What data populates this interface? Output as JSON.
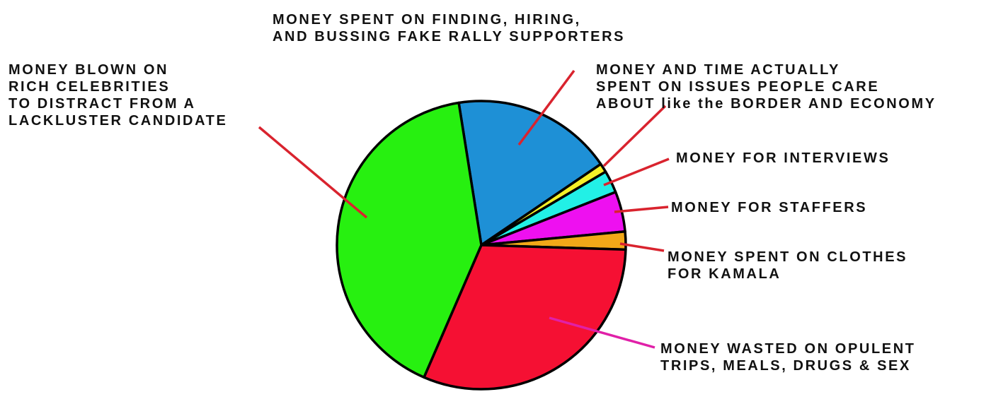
{
  "chart_data": {
    "type": "pie",
    "title": "",
    "start_angle_deg": -99,
    "direction": "clockwise",
    "slices": [
      {
        "label": "MONEY SPENT ON FINDING, HIRING,\nAND BUSSING FAKE RALLY SUPPORTERS",
        "value": 18,
        "color": "#1e90d6",
        "leader_color": "#d9232e"
      },
      {
        "label": "MONEY AND TIME ACTUALLY\nSPENT ON ISSUES PEOPLE CARE\nABOUT like the BORDER AND ECONOMY",
        "value": 1,
        "color": "#f5f028",
        "leader_color": "#d9232e"
      },
      {
        "label": "MONEY FOR INTERVIEWS",
        "value": 2.5,
        "color": "#22f0e6",
        "leader_color": "#d9232e"
      },
      {
        "label": "MONEY FOR STAFFERS",
        "value": 4.5,
        "color": "#ee10f0",
        "leader_color": "#d9232e"
      },
      {
        "label": "MONEY SPENT ON CLOTHES\nFOR KAMALA",
        "value": 2,
        "color": "#f2a818",
        "leader_color": "#d9232e"
      },
      {
        "label": "MONEY WASTED ON OPULENT\nTRIPS, MEALS, DRUGS & SEX",
        "value": 31,
        "color": "#f51033",
        "leader_color": "#e020a8"
      },
      {
        "label": "MONEY BLOWN ON\nRICH CELEBRITIES\nTO DISTRACT FROM A\nLACKLUSTER CANDIDATE",
        "value": 41,
        "color": "#27f010",
        "leader_color": "#d9232e"
      }
    ]
  }
}
